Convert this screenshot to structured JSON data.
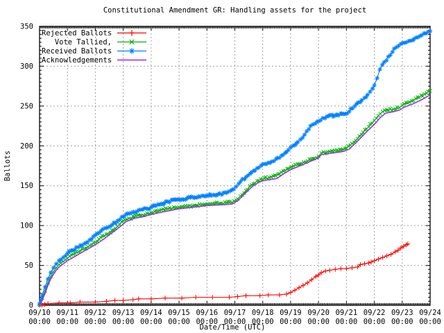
{
  "chart_data": {
    "type": "line",
    "title": "Constitutional Amendment GR: Handling assets for the project",
    "xlabel": "Date/Time (UTC)",
    "ylabel": "Ballots",
    "x_range": [
      10,
      24
    ],
    "y_range": [
      0,
      350
    ],
    "grid": true,
    "legend_position": "top-left-inside",
    "axis_color": "#000000",
    "grid_color": "#a0a0a0",
    "background_color": "#ffffff",
    "yticks": [
      0,
      50,
      100,
      150,
      200,
      250,
      300,
      350
    ],
    "xticks": [
      {
        "day": 10,
        "date": "09/10",
        "time": "00:00"
      },
      {
        "day": 11,
        "date": "09/11",
        "time": "00:00"
      },
      {
        "day": 12,
        "date": "09/12",
        "time": "00:00"
      },
      {
        "day": 13,
        "date": "09/13",
        "time": "00:00"
      },
      {
        "day": 14,
        "date": "09/14",
        "time": "00:00"
      },
      {
        "day": 15,
        "date": "09/15",
        "time": "00:00"
      },
      {
        "day": 16,
        "date": "09/16",
        "time": "00:00"
      },
      {
        "day": 17,
        "date": "09/17",
        "time": "00:00"
      },
      {
        "day": 18,
        "date": "09/18",
        "time": "00:00"
      },
      {
        "day": 19,
        "date": "09/19",
        "time": "00:00"
      },
      {
        "day": 20,
        "date": "09/20",
        "time": "00:00"
      },
      {
        "day": 21,
        "date": "09/21",
        "time": "00:00"
      },
      {
        "day": 22,
        "date": "09/22",
        "time": "00:00"
      },
      {
        "day": 23,
        "date": "09/23",
        "time": "00:00"
      },
      {
        "day": 24,
        "date": "09/24",
        "time": "00:00"
      }
    ],
    "series": [
      {
        "name": "Rejected Ballots",
        "color": "#ff0000",
        "marker": "plus",
        "marker_size": 3.4,
        "dense_step": 4,
        "dense_min_dv": 2,
        "points": [
          [
            10,
            0
          ],
          [
            10.3,
            2
          ],
          [
            10.7,
            3
          ],
          [
            11.1,
            3
          ],
          [
            11.45,
            4
          ],
          [
            12,
            4
          ],
          [
            12.4,
            5
          ],
          [
            12.7,
            6
          ],
          [
            13,
            6
          ],
          [
            13.35,
            7
          ],
          [
            13.55,
            8
          ],
          [
            14,
            8
          ],
          [
            14.5,
            9
          ],
          [
            15.1,
            9
          ],
          [
            15.6,
            10
          ],
          [
            16.2,
            10
          ],
          [
            16.8,
            10
          ],
          [
            17.1,
            11
          ],
          [
            17.4,
            12
          ],
          [
            17.9,
            12
          ],
          [
            18.2,
            13
          ],
          [
            18.6,
            13
          ],
          [
            18.85,
            14
          ],
          [
            19,
            16
          ],
          [
            19.15,
            19
          ],
          [
            19.3,
            22
          ],
          [
            19.45,
            25
          ],
          [
            19.6,
            28
          ],
          [
            19.75,
            32
          ],
          [
            19.9,
            36
          ],
          [
            20,
            38
          ],
          [
            20.1,
            41
          ],
          [
            20.25,
            43
          ],
          [
            20.4,
            44
          ],
          [
            20.6,
            45
          ],
          [
            20.8,
            46
          ],
          [
            21,
            46
          ],
          [
            21.2,
            47
          ],
          [
            21.4,
            48
          ],
          [
            21.5,
            51
          ],
          [
            21.65,
            52
          ],
          [
            21.8,
            53
          ],
          [
            22,
            56
          ],
          [
            22.15,
            58
          ],
          [
            22.3,
            60
          ],
          [
            22.45,
            62
          ],
          [
            22.6,
            64
          ],
          [
            22.75,
            67
          ],
          [
            22.85,
            69
          ],
          [
            22.95,
            72
          ],
          [
            23.05,
            74
          ],
          [
            23.15,
            76
          ],
          [
            23.2,
            77
          ]
        ]
      },
      {
        "name": "Vote Tallied,",
        "color": "#00b400",
        "marker": "cross",
        "marker_size": 2.9,
        "dense_step": 2.4,
        "points": [
          [
            10,
            0
          ],
          [
            10.05,
            4
          ],
          [
            10.1,
            9
          ],
          [
            10.2,
            18
          ],
          [
            10.3,
            28
          ],
          [
            10.4,
            36
          ],
          [
            10.5,
            42
          ],
          [
            10.6,
            47
          ],
          [
            10.7,
            51
          ],
          [
            10.85,
            55
          ],
          [
            11,
            59
          ],
          [
            11.2,
            64
          ],
          [
            11.4,
            67
          ],
          [
            11.6,
            71
          ],
          [
            11.8,
            75
          ],
          [
            12,
            79
          ],
          [
            12.2,
            85
          ],
          [
            12.4,
            89
          ],
          [
            12.6,
            94
          ],
          [
            12.8,
            99
          ],
          [
            13,
            106
          ],
          [
            13.2,
            109
          ],
          [
            13.4,
            111
          ],
          [
            13.6,
            113
          ],
          [
            13.8,
            114
          ],
          [
            14,
            116
          ],
          [
            14.3,
            119
          ],
          [
            14.6,
            121
          ],
          [
            15,
            123
          ],
          [
            15.5,
            125
          ],
          [
            16,
            127
          ],
          [
            16.5,
            128
          ],
          [
            16.9,
            129
          ],
          [
            17.05,
            132
          ],
          [
            17.2,
            137
          ],
          [
            17.4,
            144
          ],
          [
            17.6,
            151
          ],
          [
            17.8,
            156
          ],
          [
            18,
            158
          ],
          [
            18.3,
            161
          ],
          [
            18.6,
            165
          ],
          [
            18.8,
            169
          ],
          [
            19,
            173
          ],
          [
            19.3,
            177
          ],
          [
            19.6,
            181
          ],
          [
            19.8,
            184
          ],
          [
            20,
            187
          ],
          [
            20.1,
            191
          ],
          [
            20.4,
            193
          ],
          [
            20.7,
            194
          ],
          [
            21,
            197
          ],
          [
            21.2,
            203
          ],
          [
            21.4,
            209
          ],
          [
            21.6,
            217
          ],
          [
            21.8,
            224
          ],
          [
            22,
            232
          ],
          [
            22.15,
            238
          ],
          [
            22.3,
            243
          ],
          [
            22.45,
            245
          ],
          [
            22.7,
            246
          ],
          [
            22.9,
            248
          ],
          [
            23,
            251
          ],
          [
            23.2,
            254
          ],
          [
            23.4,
            257
          ],
          [
            23.6,
            261
          ],
          [
            23.8,
            265
          ],
          [
            24,
            269
          ]
        ]
      },
      {
        "name": "Received Ballots",
        "color": "#0080ff",
        "marker": "star",
        "marker_size": 3.2,
        "dense_step": 2.2,
        "points": [
          [
            10,
            2
          ],
          [
            10.05,
            7
          ],
          [
            10.1,
            13
          ],
          [
            10.2,
            23
          ],
          [
            10.3,
            33
          ],
          [
            10.4,
            41
          ],
          [
            10.5,
            47
          ],
          [
            10.6,
            52
          ],
          [
            10.7,
            56
          ],
          [
            10.85,
            60
          ],
          [
            11,
            65
          ],
          [
            11.2,
            69
          ],
          [
            11.4,
            73
          ],
          [
            11.6,
            77
          ],
          [
            11.8,
            82
          ],
          [
            12,
            88
          ],
          [
            12.2,
            93
          ],
          [
            12.4,
            97
          ],
          [
            12.6,
            101
          ],
          [
            12.8,
            106
          ],
          [
            12.95,
            111
          ],
          [
            13.1,
            114
          ],
          [
            13.3,
            116
          ],
          [
            13.5,
            118
          ],
          [
            13.7,
            120
          ],
          [
            14,
            123
          ],
          [
            14.3,
            126
          ],
          [
            14.6,
            130
          ],
          [
            15,
            133
          ],
          [
            15.4,
            135
          ],
          [
            16,
            138
          ],
          [
            16.4,
            139
          ],
          [
            16.7,
            141
          ],
          [
            16.9,
            145
          ],
          [
            17.05,
            149
          ],
          [
            17.2,
            155
          ],
          [
            17.4,
            161
          ],
          [
            17.6,
            167
          ],
          [
            17.8,
            172
          ],
          [
            18,
            177
          ],
          [
            18.2,
            179
          ],
          [
            18.4,
            181
          ],
          [
            18.6,
            185
          ],
          [
            18.8,
            191
          ],
          [
            19,
            198
          ],
          [
            19.2,
            203
          ],
          [
            19.35,
            208
          ],
          [
            19.5,
            214
          ],
          [
            19.65,
            221
          ],
          [
            19.8,
            227
          ],
          [
            20,
            231
          ],
          [
            20.15,
            235
          ],
          [
            20.3,
            237
          ],
          [
            20.6,
            238
          ],
          [
            20.9,
            240
          ],
          [
            21.1,
            243
          ],
          [
            21.3,
            250
          ],
          [
            21.5,
            255
          ],
          [
            21.7,
            261
          ],
          [
            21.85,
            268
          ],
          [
            22,
            276
          ],
          [
            22.1,
            285
          ],
          [
            22.2,
            296
          ],
          [
            22.35,
            305
          ],
          [
            22.5,
            312
          ],
          [
            22.65,
            318
          ],
          [
            22.8,
            324
          ],
          [
            22.95,
            328
          ],
          [
            23.15,
            330
          ],
          [
            23.3,
            332
          ],
          [
            23.5,
            336
          ],
          [
            23.7,
            339
          ],
          [
            23.85,
            341
          ],
          [
            24,
            344
          ]
        ]
      },
      {
        "name": "Acknowledgements",
        "color": "#a020f0",
        "marker": "none",
        "points": [
          [
            10,
            0
          ],
          [
            10.1,
            7
          ],
          [
            10.2,
            15
          ],
          [
            10.3,
            25
          ],
          [
            10.4,
            33
          ],
          [
            10.5,
            39
          ],
          [
            10.6,
            44
          ],
          [
            10.7,
            48
          ],
          [
            10.85,
            52
          ],
          [
            11,
            56
          ],
          [
            11.3,
            62
          ],
          [
            11.6,
            68
          ],
          [
            12,
            76
          ],
          [
            12.3,
            83
          ],
          [
            12.6,
            91
          ],
          [
            12.9,
            99
          ],
          [
            13.1,
            105
          ],
          [
            13.4,
            109
          ],
          [
            13.7,
            111
          ],
          [
            14,
            114
          ],
          [
            14.4,
            117
          ],
          [
            15,
            121
          ],
          [
            15.5,
            123
          ],
          [
            16,
            125
          ],
          [
            16.5,
            126
          ],
          [
            16.9,
            127
          ],
          [
            17.1,
            131
          ],
          [
            17.3,
            138
          ],
          [
            17.5,
            145
          ],
          [
            17.7,
            151
          ],
          [
            17.9,
            155
          ],
          [
            18.1,
            157
          ],
          [
            18.5,
            159
          ],
          [
            18.8,
            166
          ],
          [
            19,
            170
          ],
          [
            19.4,
            176
          ],
          [
            19.8,
            182
          ],
          [
            20,
            185
          ],
          [
            20.1,
            189
          ],
          [
            20.5,
            191
          ],
          [
            20.9,
            193
          ],
          [
            21.1,
            196
          ],
          [
            21.4,
            206
          ],
          [
            21.7,
            217
          ],
          [
            22,
            227
          ],
          [
            22.2,
            235
          ],
          [
            22.4,
            241
          ],
          [
            22.7,
            243
          ],
          [
            22.9,
            245
          ],
          [
            23.1,
            249
          ],
          [
            23.4,
            253
          ],
          [
            23.7,
            258
          ],
          [
            24,
            264
          ]
        ]
      }
    ]
  }
}
